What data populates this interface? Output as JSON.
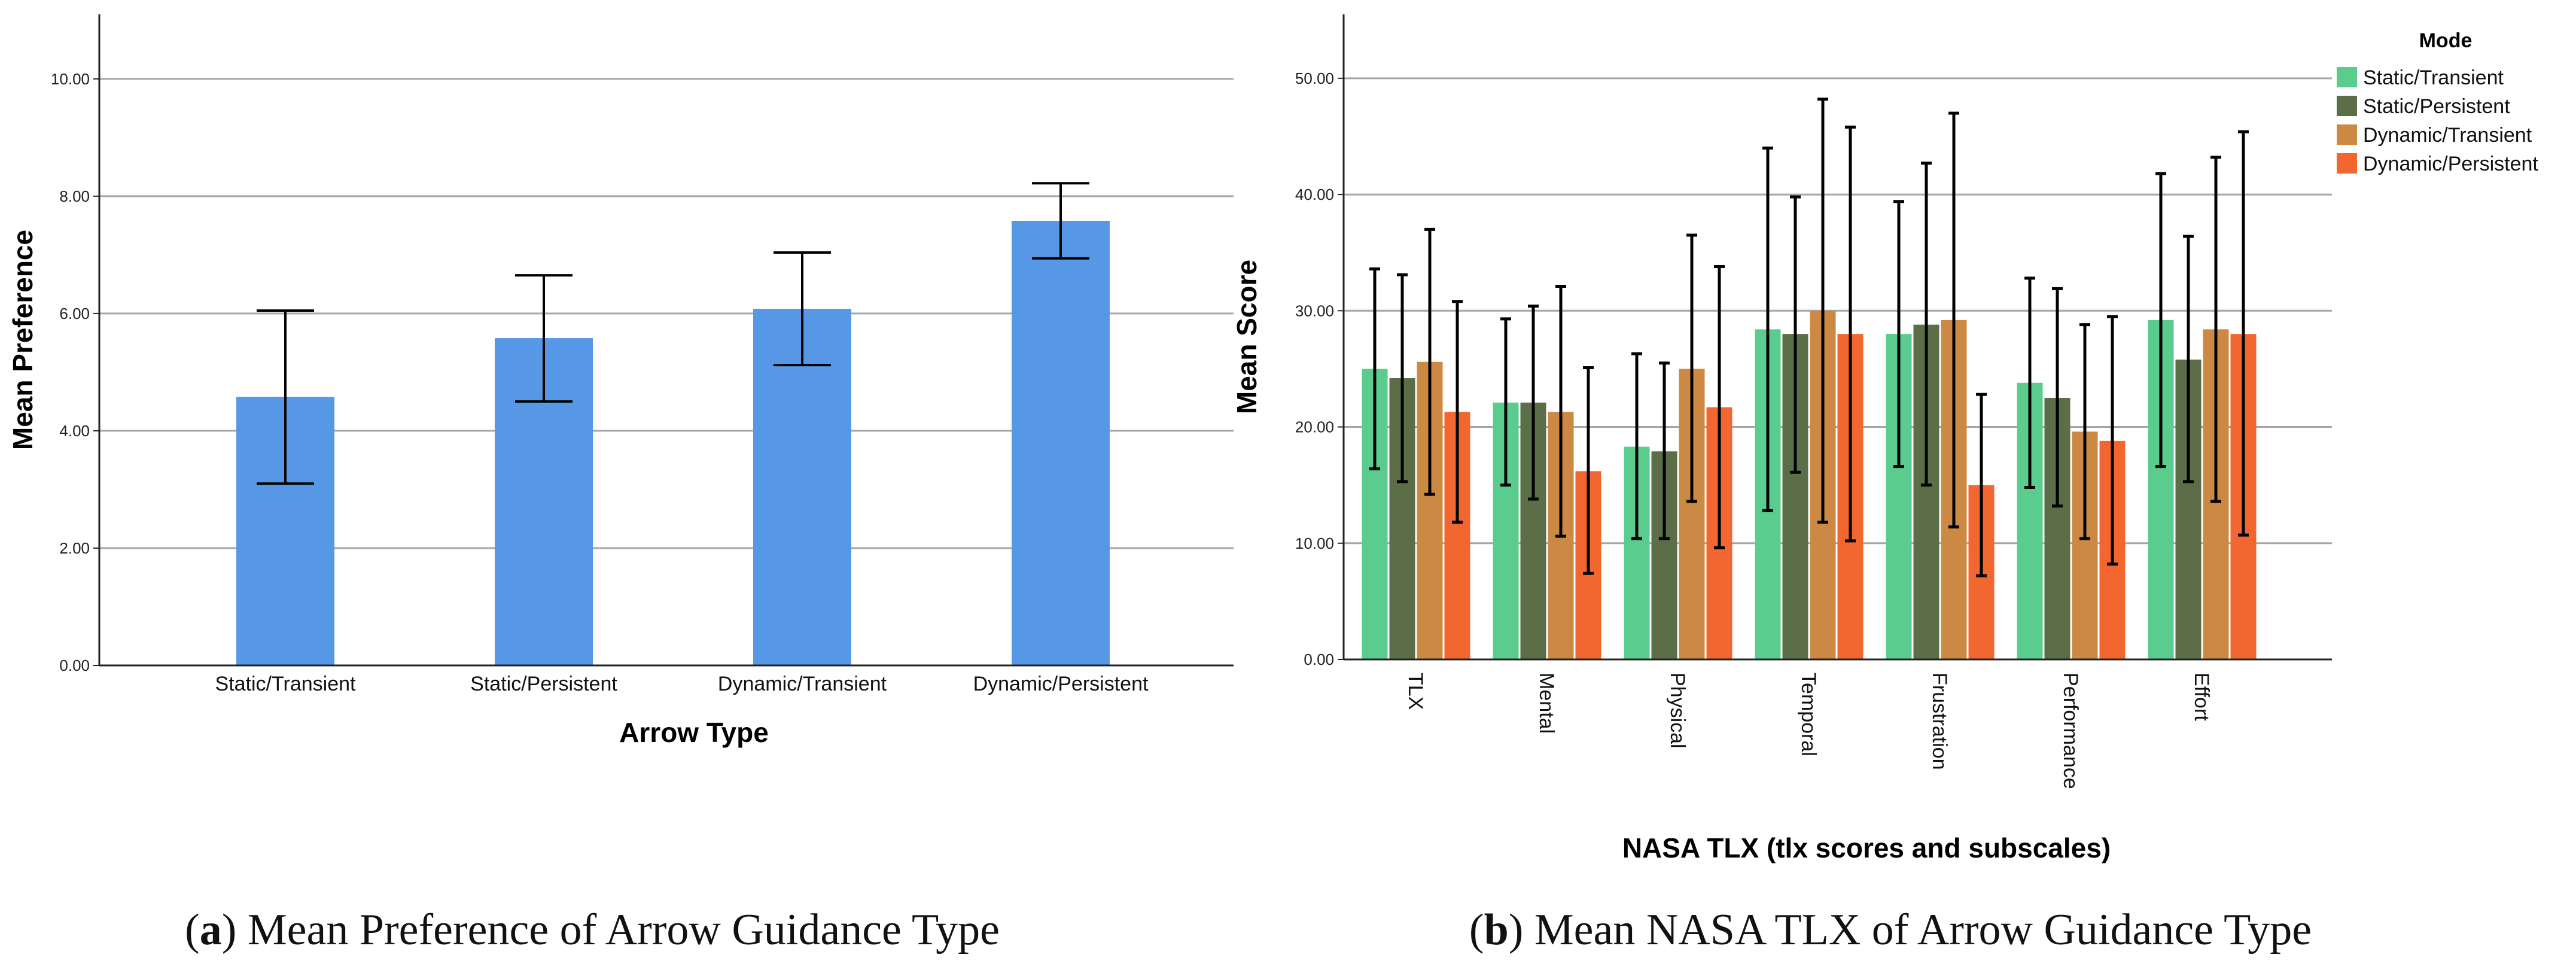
{
  "chart_data": [
    {
      "type": "bar",
      "panel_letter": "a",
      "caption": "Mean Preference of Arrow Guidance Type",
      "xlabel": "Arrow Type",
      "ylabel": "Mean Preference",
      "ylim": [
        0,
        11.1
      ],
      "yticks": [
        "0.00",
        "2.00",
        "4.00",
        "6.00",
        "8.00",
        "10.00"
      ],
      "grid": "horizontal",
      "categories": [
        "Static/Transient",
        "Static/Persistent",
        "Dynamic/Transient",
        "Dynamic/Persistent"
      ],
      "series": [
        {
          "values": [
            4.58,
            5.58,
            6.08,
            7.58
          ],
          "error_low": [
            3.1,
            4.5,
            5.12,
            6.94
          ],
          "error_high": [
            6.05,
            6.65,
            7.04,
            8.22
          ],
          "color": "#5698E6"
        }
      ]
    },
    {
      "type": "bar",
      "panel_letter": "b",
      "caption": "Mean NASA TLX of Arrow Guidance Type",
      "xlabel": "NASA TLX (tlx scores and subscales)",
      "ylabel": "Mean Score",
      "ylim": [
        0,
        55.5
      ],
      "yticks": [
        "0.00",
        "10.00",
        "20.00",
        "30.00",
        "40.00",
        "50.00"
      ],
      "grid": "horizontal",
      "categories": [
        "TLX",
        "Mental",
        "Physical",
        "Temporal",
        "Frustration",
        "Performance",
        "Effort"
      ],
      "legend_title": "Mode",
      "legend_position": "top-right",
      "series": [
        {
          "name": "Static/Transient",
          "color": "#5ACC8E",
          "values": [
            25.0,
            22.1,
            18.3,
            28.4,
            28.0,
            23.8,
            29.2
          ],
          "error_low": [
            16.4,
            15.0,
            10.4,
            12.8,
            16.6,
            14.8,
            16.6
          ],
          "error_high": [
            33.6,
            29.3,
            26.3,
            44.0,
            39.4,
            32.8,
            41.8
          ]
        },
        {
          "name": "Static/Persistent",
          "color": "#5B6E47",
          "values": [
            24.2,
            22.1,
            17.9,
            28.0,
            28.8,
            22.5,
            25.8
          ],
          "error_low": [
            15.3,
            13.8,
            10.4,
            16.1,
            15.0,
            13.2,
            15.3
          ],
          "error_high": [
            33.1,
            30.4,
            25.5,
            39.8,
            42.7,
            31.9,
            36.4
          ]
        },
        {
          "name": "Dynamic/Transient",
          "color": "#CC8943",
          "values": [
            25.6,
            21.3,
            25.0,
            30.0,
            29.2,
            19.6,
            28.4
          ],
          "error_low": [
            14.2,
            10.6,
            13.6,
            11.8,
            11.4,
            10.4,
            13.6
          ],
          "error_high": [
            37.0,
            32.1,
            36.5,
            48.2,
            47.0,
            28.8,
            43.2
          ]
        },
        {
          "name": "Dynamic/Persistent",
          "color": "#F26630",
          "values": [
            21.3,
            16.2,
            21.7,
            28.0,
            15.0,
            18.8,
            28.0
          ],
          "error_low": [
            11.8,
            7.4,
            9.6,
            10.2,
            7.2,
            8.2,
            10.7
          ],
          "error_high": [
            30.8,
            25.1,
            33.8,
            45.8,
            22.8,
            29.5,
            45.4
          ]
        }
      ]
    }
  ]
}
